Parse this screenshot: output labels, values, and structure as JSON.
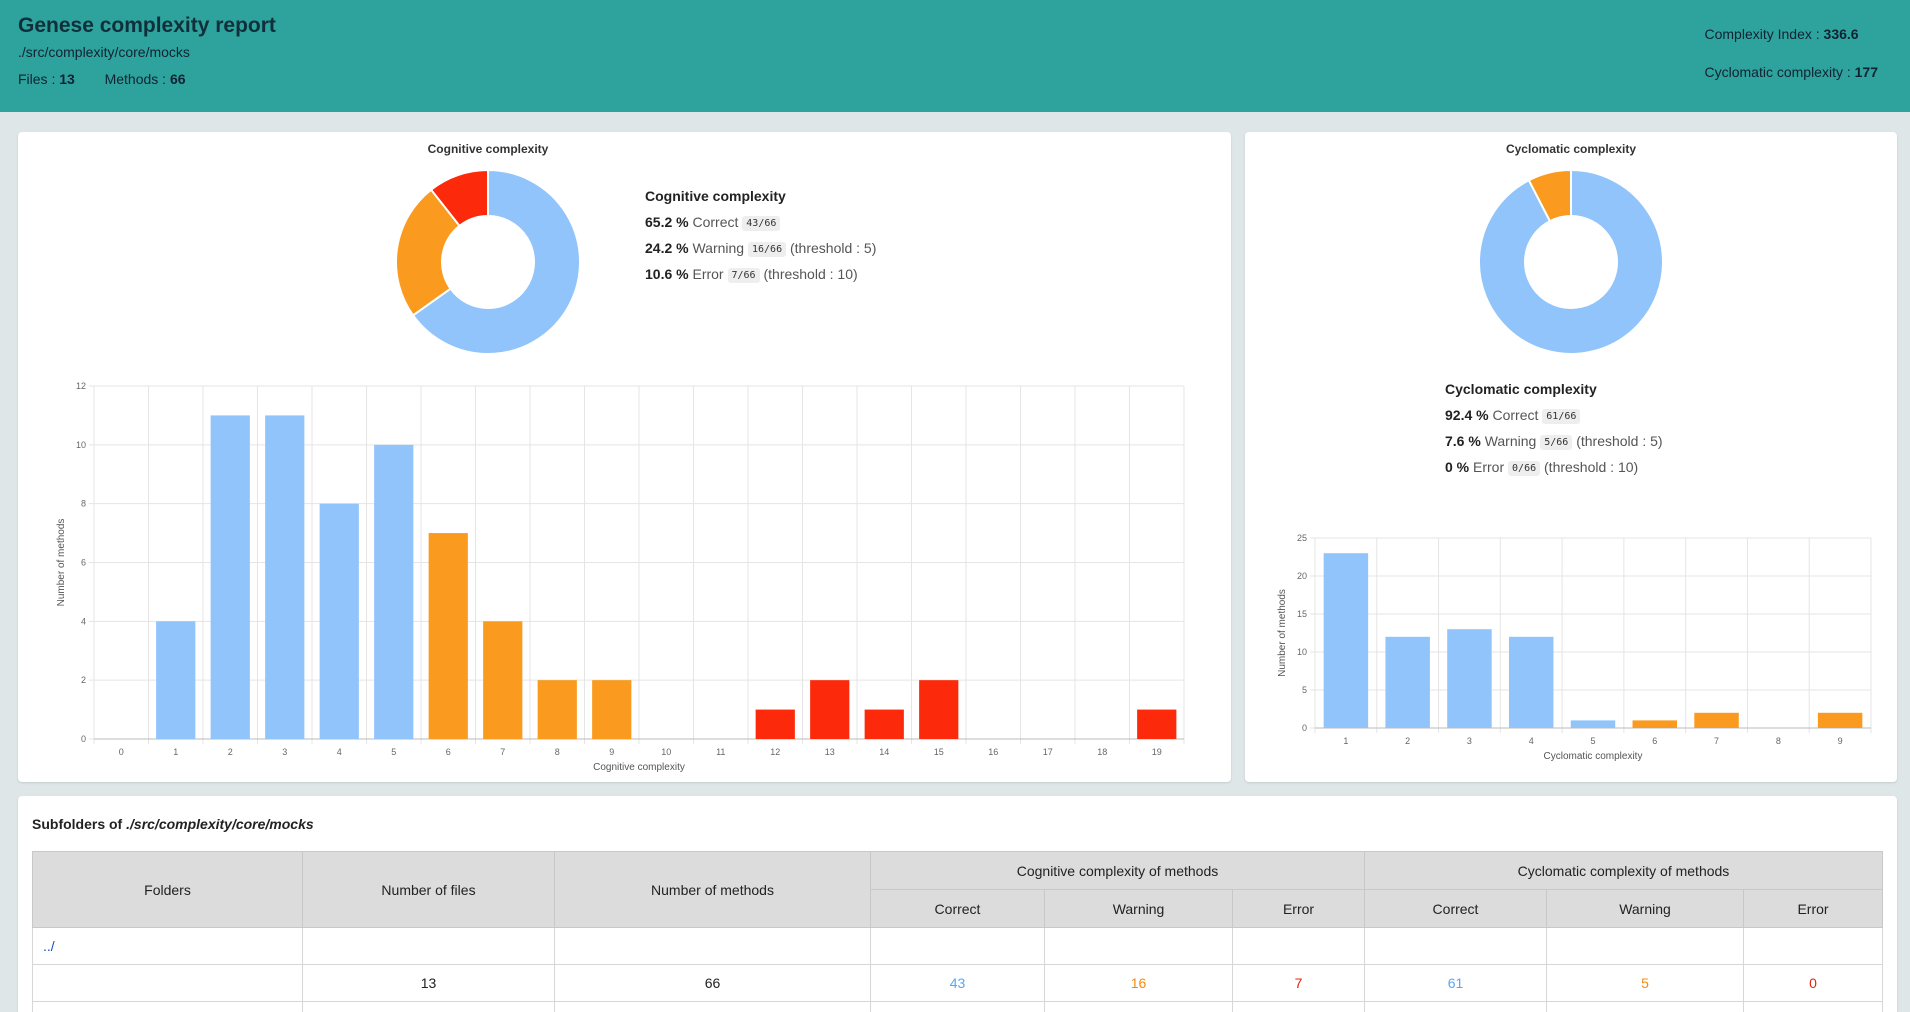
{
  "header": {
    "title": "Genese complexity report",
    "path": "./src/complexity/core/mocks",
    "files_label": "Files :",
    "files_value": "13",
    "methods_label": "Methods :",
    "methods_value": "66",
    "complexity_index_label": "Complexity Index :",
    "complexity_index_value": "336.6",
    "cyclomatic_label": "Cyclomatic complexity :",
    "cyclomatic_value": "177"
  },
  "colors": {
    "correct": "#90c4fb",
    "warning": "#fa9a1e",
    "error": "#fc2a0b",
    "header": "#2ea39d"
  },
  "cognitive": {
    "doughnut_title": "Cognitive complexity",
    "legend_title": "Cognitive complexity",
    "correct": {
      "pct": "65.2 %",
      "label": "Correct",
      "badge": "43/66",
      "threshold": ""
    },
    "warning": {
      "pct": "24.2 %",
      "label": "Warning",
      "badge": "16/66",
      "threshold": "(threshold : 5)"
    },
    "error": {
      "pct": "10.6 %",
      "label": "Error",
      "badge": "7/66",
      "threshold": "(threshold : 10)"
    }
  },
  "cyclomatic": {
    "doughnut_title": "Cyclomatic complexity",
    "legend_title": "Cyclomatic complexity",
    "correct": {
      "pct": "92.4 %",
      "label": "Correct",
      "badge": "61/66",
      "threshold": ""
    },
    "warning": {
      "pct": "7.6 %",
      "label": "Warning",
      "badge": "5/66",
      "threshold": "(threshold : 5)"
    },
    "error": {
      "pct": "0 %",
      "label": "Error",
      "badge": "0/66",
      "threshold": "(threshold : 10)"
    }
  },
  "chart_data": [
    {
      "type": "pie",
      "title": "Cognitive complexity",
      "categories": [
        "Correct",
        "Warning",
        "Error"
      ],
      "values": [
        43,
        16,
        7
      ]
    },
    {
      "type": "bar",
      "title": "",
      "xlabel": "Cognitive complexity",
      "ylabel": "Number of methods",
      "categories": [
        "0",
        "1",
        "2",
        "3",
        "4",
        "5",
        "6",
        "7",
        "8",
        "9",
        "10",
        "11",
        "12",
        "13",
        "14",
        "15",
        "16",
        "17",
        "18",
        "19"
      ],
      "values": [
        0,
        4,
        11,
        11,
        8,
        10,
        7,
        4,
        2,
        2,
        0,
        0,
        1,
        2,
        1,
        2,
        0,
        0,
        0,
        1
      ],
      "ylim": [
        0,
        12
      ],
      "yticks": [
        0,
        2,
        4,
        6,
        8,
        10,
        12
      ]
    },
    {
      "type": "pie",
      "title": "Cyclomatic complexity",
      "categories": [
        "Correct",
        "Warning",
        "Error"
      ],
      "values": [
        61,
        5,
        0
      ]
    },
    {
      "type": "bar",
      "title": "",
      "xlabel": "Cyclomatic complexity",
      "ylabel": "Number of methods",
      "categories": [
        "1",
        "2",
        "3",
        "4",
        "5",
        "6",
        "7",
        "8",
        "9"
      ],
      "values": [
        23,
        12,
        13,
        12,
        1,
        1,
        2,
        0,
        2
      ],
      "ylim": [
        0,
        25
      ],
      "yticks": [
        0,
        5,
        10,
        15,
        20,
        25
      ]
    }
  ],
  "subfolders": {
    "title_prefix": "Subfolders of",
    "title_path": "./src/complexity/core/mocks",
    "headers": {
      "folders": "Folders",
      "files": "Number of files",
      "methods": "Number of methods",
      "cognitive_group": "Cognitive complexity of methods",
      "cyclomatic_group": "Cyclomatic complexity of methods",
      "correct": "Correct",
      "warning": "Warning",
      "error": "Error"
    },
    "parent_link": "../",
    "total_row": {
      "files": "13",
      "methods": "66",
      "cog_correct": "43",
      "cog_warning": "16",
      "cog_error": "7",
      "cyc_correct": "61",
      "cyc_warning": "5",
      "cyc_error": "0"
    }
  }
}
